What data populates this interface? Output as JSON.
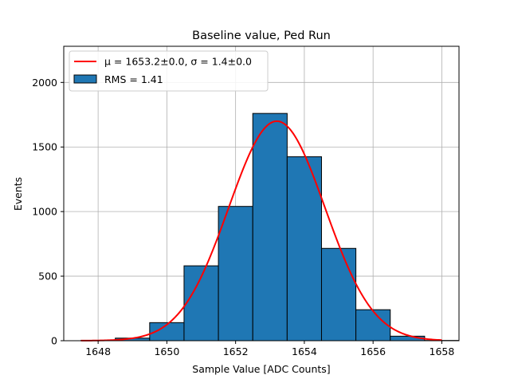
{
  "chart_data": {
    "type": "bar",
    "title": "Baseline value, Ped Run",
    "xlabel": "Sample Value [ADC Counts]",
    "ylabel": "Events",
    "xlim": [
      1647.0,
      1658.5
    ],
    "ylim": [
      0,
      2280
    ],
    "xticks": [
      1648,
      1650,
      1652,
      1654,
      1656,
      1658
    ],
    "yticks": [
      0,
      500,
      1000,
      1500,
      2000
    ],
    "grid": true,
    "legend_position": "upper-left",
    "histogram": {
      "name": "RMS = 1.41",
      "color": "#1f77b4",
      "edgecolor": "#000000",
      "bins": [
        {
          "x0": 1647.5,
          "x1": 1648.5,
          "count": 2
        },
        {
          "x0": 1648.5,
          "x1": 1649.5,
          "count": 20
        },
        {
          "x0": 1649.5,
          "x1": 1650.5,
          "count": 140
        },
        {
          "x0": 1650.5,
          "x1": 1651.5,
          "count": 580
        },
        {
          "x0": 1651.5,
          "x1": 1652.5,
          "count": 1040
        },
        {
          "x0": 1652.5,
          "x1": 1653.5,
          "count": 1760
        },
        {
          "x0": 1653.5,
          "x1": 1654.5,
          "count": 1425
        },
        {
          "x0": 1654.5,
          "x1": 1655.5,
          "count": 715
        },
        {
          "x0": 1655.5,
          "x1": 1656.5,
          "count": 240
        },
        {
          "x0": 1656.5,
          "x1": 1657.5,
          "count": 35
        },
        {
          "x0": 1657.5,
          "x1": 1658.5,
          "count": 2
        }
      ]
    },
    "fit": {
      "name_prefix": "μ = 1653.2±0.0, σ = 1.4±0.0",
      "color": "#ff0000",
      "mu": 1653.2,
      "sigma": 1.4,
      "amplitude": 1700,
      "x_range": [
        1647.5,
        1658.0
      ]
    }
  }
}
